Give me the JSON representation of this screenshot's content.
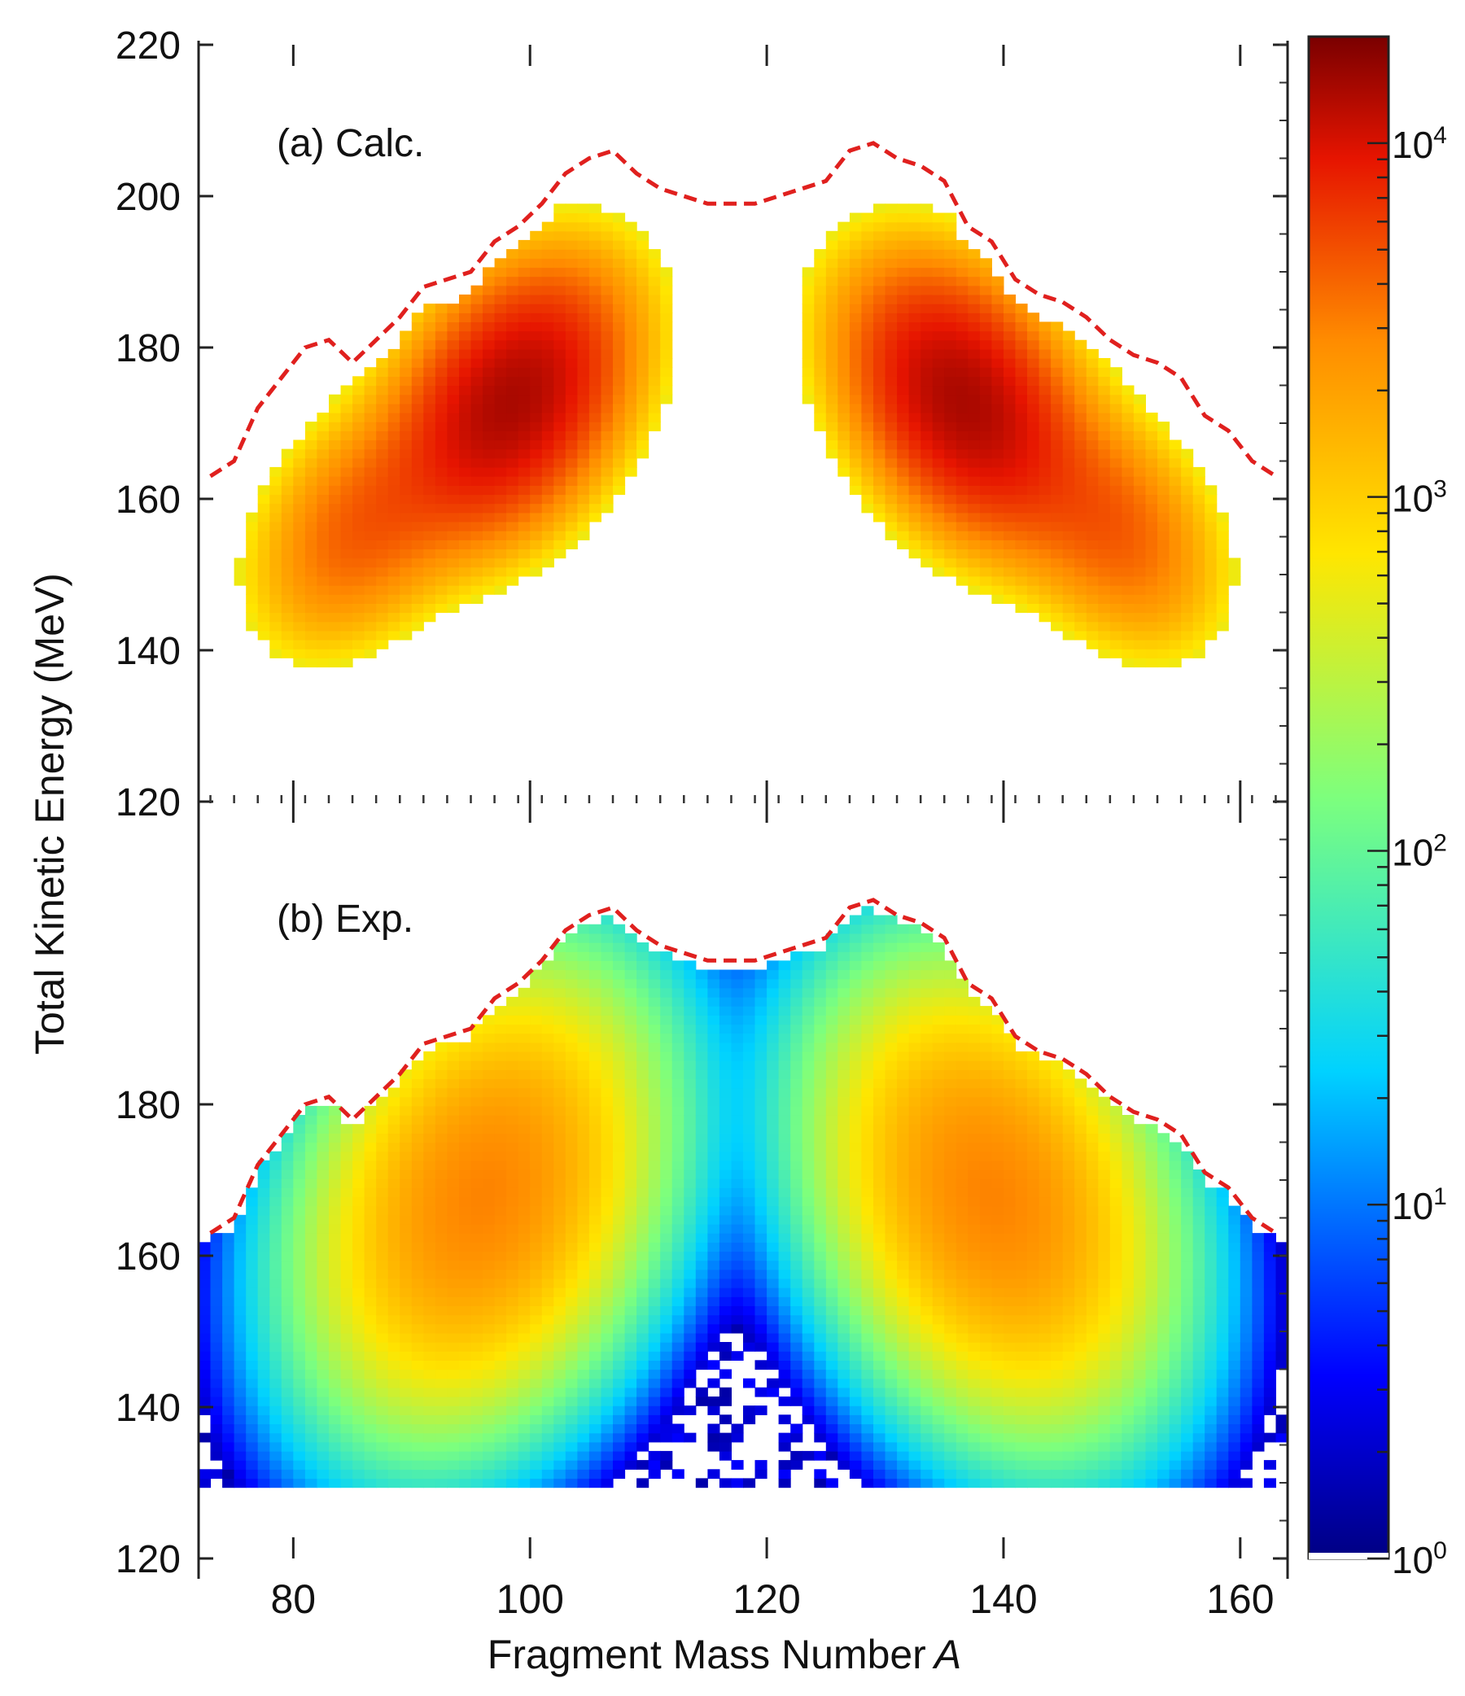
{
  "chart_data": {
    "type": "heatmap",
    "xlabel": "Fragment Mass Number",
    "xlabel_italic": "A",
    "ylabel": "Total Kinetic Energy (MeV)",
    "xlim": [
      72,
      164
    ],
    "x_ticks": [
      80,
      100,
      120,
      140,
      160
    ],
    "color_scale": "log",
    "colorbar": {
      "range": [
        1,
        20000
      ],
      "ticks": [
        {
          "base": "10",
          "exp": "0",
          "value": 1
        },
        {
          "base": "10",
          "exp": "1",
          "value": 10
        },
        {
          "base": "10",
          "exp": "2",
          "value": 100
        },
        {
          "base": "10",
          "exp": "3",
          "value": 1000
        },
        {
          "base": "10",
          "exp": "4",
          "value": 10000
        }
      ],
      "colormap": "jet"
    },
    "panels": [
      {
        "label": "(a) Calc.",
        "ylim": [
          120,
          220
        ],
        "y_ticks": [
          "120",
          "140",
          "160",
          "180",
          "200",
          "220"
        ],
        "peak_count": 14000,
        "dashed_envelope": {
          "color": "#e0201e",
          "x": [
            73,
            75,
            77,
            79,
            81,
            83,
            85,
            87,
            89,
            91,
            93,
            95,
            97,
            99,
            101,
            103,
            105,
            107,
            109,
            111,
            113,
            115,
            117,
            119,
            121,
            123,
            125,
            127,
            129,
            131,
            133,
            135,
            137,
            139,
            141,
            143,
            145,
            147,
            149,
            151,
            153,
            155,
            157,
            159,
            161,
            163
          ],
          "y": [
            163,
            165,
            172,
            176,
            180,
            181,
            178,
            181,
            184,
            188,
            189,
            190,
            194,
            196,
            199,
            203,
            205,
            206,
            203,
            201,
            200,
            199,
            199,
            199,
            200,
            201,
            202,
            206,
            207,
            205,
            204,
            202,
            196,
            194,
            189,
            187,
            186,
            184,
            181,
            179,
            178,
            176,
            171,
            169,
            165,
            163
          ]
        },
        "regions": [
          {
            "x_center": 98.5,
            "tke_center": 173,
            "sigma_x": 5.5,
            "sigma_tke": 9.5,
            "tilt": 0.65,
            "peak": 1.0
          },
          {
            "x_center": 85.5,
            "tke_center": 156,
            "sigma_x": 5.0,
            "sigma_tke": 8.5,
            "tilt": 0.6,
            "peak": 0.3
          }
        ],
        "mirror_about": 117.5
      },
      {
        "label": "(b) Exp.",
        "ylim": [
          120,
          220
        ],
        "y_ticks": [
          "120",
          "140",
          "160",
          "180",
          ""
        ],
        "peak_count": 3000,
        "dashed_envelope": {
          "color": "#e0201e",
          "x": [
            73,
            75,
            77,
            79,
            81,
            83,
            85,
            87,
            89,
            91,
            93,
            95,
            97,
            99,
            101,
            103,
            105,
            107,
            109,
            111,
            113,
            115,
            117,
            119,
            121,
            123,
            125,
            127,
            129,
            131,
            133,
            135,
            137,
            139,
            141,
            143,
            145,
            147,
            149,
            151,
            153,
            155,
            157,
            159,
            161,
            163
          ],
          "y": [
            163,
            165,
            172,
            176,
            180,
            181,
            178,
            181,
            184,
            188,
            189,
            190,
            194,
            196,
            199,
            203,
            205,
            206,
            203,
            201,
            200,
            199,
            199,
            199,
            200,
            201,
            202,
            206,
            207,
            205,
            204,
            202,
            196,
            194,
            189,
            187,
            186,
            184,
            181,
            179,
            178,
            176,
            171,
            169,
            165,
            163
          ]
        },
        "regions": [
          {
            "x_center": 96,
            "tke_center": 168,
            "sigma_x": 6.5,
            "sigma_tke": 13.0,
            "tilt": 0.55,
            "peak": 1.0
          }
        ],
        "mirror_about": 117.5
      }
    ]
  }
}
